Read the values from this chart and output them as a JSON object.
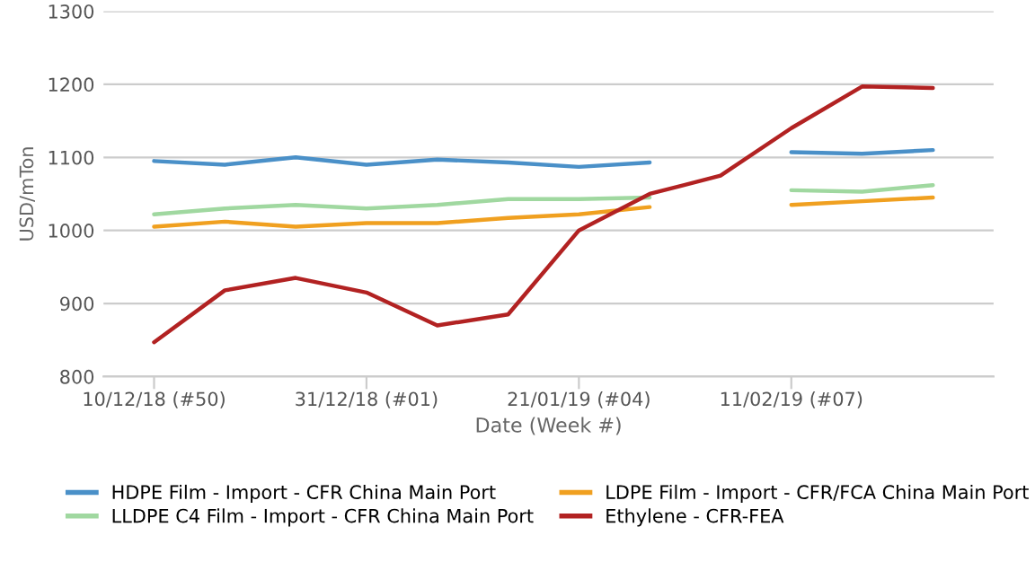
{
  "chart_data": {
    "type": "line",
    "xlabel": "Date (Week #)",
    "ylabel": "USD/mTon",
    "x": [
      "2018-12-10",
      "2018-12-17",
      "2018-12-24",
      "2018-12-31",
      "2019-01-07",
      "2019-01-14",
      "2019-01-21",
      "2019-01-28",
      "2019-02-04",
      "2019-02-11",
      "2019-02-18",
      "2019-02-25"
    ],
    "series": [
      {
        "name": "HDPE Film - Import - CFR China Main Port",
        "color": "#4a90c8",
        "values": [
          1095,
          1090,
          1100,
          1090,
          1097,
          1093,
          1087,
          1093,
          null,
          1107,
          1105,
          1110
        ]
      },
      {
        "name": "LDPE Film - Import - CFR/FCA China Main Port",
        "color": "#f0a020",
        "values": [
          1005,
          1012,
          1005,
          1010,
          1010,
          1017,
          1022,
          1032,
          null,
          1035,
          1040,
          1045
        ]
      },
      {
        "name": "LLDPE C4 Film - Import - CFR China Main Port",
        "color": "#a0d8a0",
        "values": [
          1022,
          1030,
          1035,
          1030,
          1035,
          1043,
          1043,
          1045,
          null,
          1055,
          1053,
          1062
        ]
      },
      {
        "name": "Ethylene - CFR-FEA",
        "color": "#b22222",
        "values": [
          847,
          918,
          935,
          915,
          870,
          885,
          1000,
          1050,
          1075,
          1140,
          1197,
          1195
        ]
      }
    ],
    "xlim": [
      "2018-12-05",
      "2019-03-03"
    ],
    "xticks": [
      {
        "value": "2018-12-10",
        "label": "10/12/18 (#50)"
      },
      {
        "value": "2018-12-31",
        "label": "31/12/18 (#01)"
      },
      {
        "value": "2019-01-21",
        "label": "21/01/19 (#04)"
      },
      {
        "value": "2019-02-11",
        "label": "11/02/19 (#07)"
      }
    ],
    "ylim": [
      800,
      1300
    ],
    "yticks": [
      800,
      900,
      1000,
      1100,
      1200,
      1300
    ],
    "grid": "y",
    "legend": "bottom",
    "line_style": "solid",
    "marker": "none"
  }
}
